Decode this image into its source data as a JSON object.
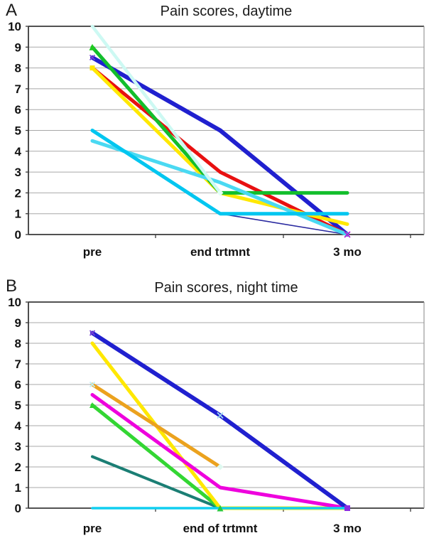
{
  "figure": {
    "background": "#ffffff",
    "grid_color": "#A8A8A8",
    "frame_color": "#3a3a3a"
  },
  "chart_data": [
    {
      "type": "line",
      "panel_label": "A",
      "title": "Pain scores, daytime",
      "categories": [
        "pre",
        "end trtmnt",
        "3 mo"
      ],
      "xlabel": "",
      "ylabel": "",
      "ylim": [
        0,
        10
      ],
      "ytick_step": 1,
      "yticks": [
        0,
        1,
        2,
        3,
        4,
        5,
        6,
        7,
        8,
        9,
        10
      ],
      "grid": "horizontal",
      "legend": "none",
      "series": [
        {
          "name": "navy-thin",
          "color": "#2A2AA0",
          "width": 1.6,
          "values": [
            5,
            1,
            0
          ]
        },
        {
          "name": "blue",
          "color": "#2020CF",
          "width": 6,
          "values": [
            8.5,
            5,
            0
          ]
        },
        {
          "name": "red",
          "color": "#E81010",
          "width": 5,
          "values": [
            8,
            3,
            0
          ]
        },
        {
          "name": "yellow",
          "color": "#FFE800",
          "width": 5,
          "values": [
            8,
            2,
            0.5
          ]
        },
        {
          "name": "green",
          "color": "#12BE2C",
          "width": 5,
          "values": [
            9,
            2,
            2
          ]
        },
        {
          "name": "turquoise",
          "color": "#4AD9F2",
          "width": 5,
          "values": [
            4.5,
            2.5,
            0
          ]
        },
        {
          "name": "sky-blue",
          "color": "#00C6F0",
          "width": 5,
          "values": [
            5,
            1,
            1
          ]
        },
        {
          "name": "pale-cyan",
          "color": "#CDF9F3",
          "width": 4.5,
          "values": [
            10,
            2,
            null
          ]
        }
      ],
      "markers": [
        {
          "xi": 0,
          "y": 9,
          "shape": "triangle",
          "color": "#1FC91F",
          "size": 9
        },
        {
          "xi": 0,
          "y": 8.5,
          "shape": "x",
          "color": "#7A3FD4",
          "size": 7
        },
        {
          "xi": 0,
          "y": 8,
          "shape": "square",
          "color": "#FFE800",
          "size": 7
        },
        {
          "xi": 1,
          "y": 2,
          "shape": "diamond",
          "color": "#E4FFF6",
          "size": 9
        },
        {
          "xi": 2,
          "y": 0,
          "shape": "x",
          "color": "#B41FD4",
          "size": 8
        }
      ]
    },
    {
      "type": "line",
      "panel_label": "B",
      "title": "Pain scores, night time",
      "categories": [
        "pre",
        "end of trtmnt",
        "3 mo"
      ],
      "xlabel": "",
      "ylabel": "",
      "ylim": [
        0,
        10
      ],
      "ytick_step": 1,
      "yticks": [
        0,
        1,
        2,
        3,
        4,
        5,
        6,
        7,
        8,
        9,
        10
      ],
      "grid": "horizontal",
      "legend": "none",
      "series": [
        {
          "name": "teal",
          "color": "#1B7E74",
          "width": 4,
          "values": [
            2.5,
            0,
            0
          ]
        },
        {
          "name": "green",
          "color": "#33D633",
          "width": 5,
          "values": [
            5,
            0,
            0
          ]
        },
        {
          "name": "yellow",
          "color": "#FFE800",
          "width": 5,
          "values": [
            8,
            0,
            0
          ]
        },
        {
          "name": "orange",
          "color": "#EBA21E",
          "width": 5,
          "values": [
            6,
            2,
            null
          ]
        },
        {
          "name": "magenta",
          "color": "#EE00DD",
          "width": 5,
          "values": [
            5.5,
            1,
            0
          ]
        },
        {
          "name": "blue",
          "color": "#2020CF",
          "width": 6,
          "values": [
            8.5,
            4.5,
            0
          ]
        },
        {
          "name": "cyan",
          "color": "#10CFF0",
          "width": 3.5,
          "values": [
            0,
            0,
            0
          ]
        }
      ],
      "markers": [
        {
          "xi": 0,
          "y": 8.5,
          "shape": "x",
          "color": "#7A3FD4",
          "size": 7
        },
        {
          "xi": 0,
          "y": 6,
          "shape": "x",
          "color": "#BDEFF7",
          "size": 7
        },
        {
          "xi": 0,
          "y": 5,
          "shape": "triangle",
          "color": "#2FD32F",
          "size": 8
        },
        {
          "xi": 1,
          "y": 4.5,
          "shape": "x",
          "color": "#9FDCF2",
          "size": 8
        },
        {
          "xi": 1,
          "y": 2,
          "shape": "diamond",
          "color": "#DFF9F0",
          "size": 9
        },
        {
          "xi": 1,
          "y": 0,
          "shape": "triangle",
          "color": "#27C93F",
          "size": 9
        },
        {
          "xi": 2,
          "y": 0,
          "shape": "square",
          "color": "#8A2BE2",
          "size": 8
        }
      ]
    }
  ]
}
